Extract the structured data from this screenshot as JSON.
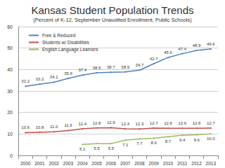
{
  "chart_data": {
    "type": "line",
    "title": "Kansas Student Population Trends",
    "subtitle": "(Percent of K-12, September Unaudited Enrollment, Public Schools)",
    "categories": [
      "2000",
      "2001",
      "2002",
      "2003",
      "2004",
      "2005",
      "2006",
      "2007",
      "2008",
      "2009",
      "2010",
      "2011",
      "2012",
      "2013"
    ],
    "series": [
      {
        "name": "Free & Reduced",
        "color": "#4f81bd",
        "values": [
          32.2,
          33.2,
          34.1,
          35.9,
          37.4,
          38.5,
          38.7,
          38.9,
          39.7,
          42.7,
          45.6,
          47.4,
          48.9,
          49.6
        ]
      },
      {
        "name": "Students w/ Disabilities",
        "color": "#c0504d",
        "values": [
          10.6,
          10.8,
          11.0,
          11.6,
          12.4,
          12.8,
          12.9,
          12.4,
          12.3,
          12.7,
          12.6,
          12.6,
          12.6,
          12.7
        ],
        "value_labels": [
          "10.6",
          "10.8",
          "11.0",
          "11.6",
          "12.4",
          "12.8",
          "12.9",
          "12.4",
          "12.3",
          "12.7",
          "12.6",
          "12.6",
          "12.6",
          "12.7"
        ]
      },
      {
        "name": "English Language Learners",
        "color": "#9bbb59",
        "values": [
          null,
          null,
          null,
          null,
          5.1,
          5.5,
          5.5,
          7.1,
          7.7,
          8.0,
          8.7,
          9.4,
          9.6,
          10.0
        ],
        "value_labels": [
          null,
          null,
          null,
          null,
          "5.1",
          "5.5",
          "5.5",
          "7.1",
          "7.7",
          "8.0",
          "8.7",
          "9.4",
          "9.6",
          "10.0"
        ]
      }
    ],
    "ylim": [
      0,
      60
    ],
    "yticks": [
      0,
      10,
      20,
      30,
      40,
      50,
      60
    ],
    "grid": true,
    "legend": "upper left",
    "data_labels": true
  }
}
